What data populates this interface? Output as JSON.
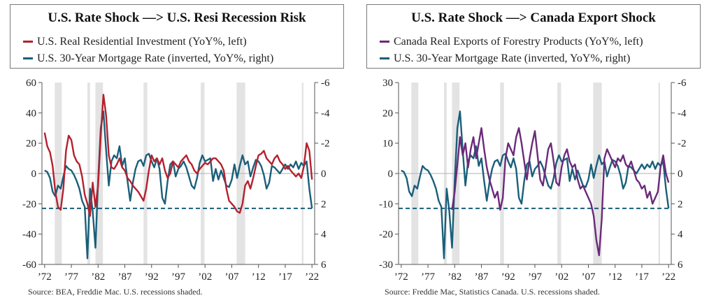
{
  "colors": {
    "us_mortgage": "#1a5f7a",
    "us_resi": "#b5202e",
    "canada_forestry": "#6b2a7a",
    "recession": "#e3e3e3",
    "dashed": "#1a5f7a"
  },
  "panels": [
    {
      "legend": {
        "title": "U.S. Rate Shock —> U.S. Resi Recession Risk",
        "series1": "U.S. Real Residential Investment (YoY%, left)",
        "series2": "U.S. 30-Year Mortgage Rate (inverted, YoY%, right)"
      },
      "source": "Source:  BEA, Freddie Mac. U.S. recessions shaded."
    },
    {
      "legend": {
        "title": "U.S. Rate Shock —> Canada Export Shock",
        "series1": "Canada Real Exports of Forestry Products (YoY%, left)",
        "series2": "U.S. 30-Year Mortgage Rate (inverted, YoY%, right)"
      },
      "source": "Source: Freddie Mac, Statistics Canada. U.S. recessions shaded."
    }
  ],
  "chart_data": [
    {
      "type": "line",
      "title": "U.S. Rate Shock —> U.S. Resi Recession Risk",
      "x_range": [
        1971.5,
        2022.5
      ],
      "x_ticks": [
        1972,
        1977,
        1982,
        1987,
        1992,
        1997,
        2002,
        2007,
        2012,
        2017,
        2022
      ],
      "x_tick_labels": [
        "’72",
        "’77",
        "’82",
        "’87",
        "’92",
        "’97",
        "’02",
        "’07",
        "’12",
        "’17",
        "’22"
      ],
      "y_left": {
        "range": [
          -60,
          60
        ],
        "ticks": [
          60,
          40,
          20,
          0,
          -20,
          -40,
          -60
        ],
        "tick_labels": [
          "60",
          "40",
          "20",
          "0",
          "-20",
          "-40",
          "-60"
        ]
      },
      "y_right": {
        "range": [
          -6,
          6
        ],
        "inverted": true,
        "ticks": [
          -6,
          -4,
          -2,
          0,
          2,
          4,
          6
        ],
        "tick_labels": [
          "-6",
          "-4",
          "-2",
          "0",
          "2",
          "4",
          "6"
        ]
      },
      "recessions": [
        [
          1973.9,
          1975.2
        ],
        [
          1980.0,
          1980.5
        ],
        [
          1981.5,
          1982.9
        ],
        [
          1990.5,
          1991.2
        ],
        [
          2001.2,
          2001.9
        ],
        [
          2007.9,
          2009.5
        ],
        [
          2020.1,
          2020.4
        ]
      ],
      "dashed_level": {
        "axis": "right",
        "value": 2.3
      },
      "series": [
        {
          "name": "U.S. Real Residential Investment (YoY%, left)",
          "axis": "left",
          "x": [
            1972.0,
            1972.5,
            1973.0,
            1973.5,
            1974.0,
            1974.5,
            1975.0,
            1975.5,
            1976.0,
            1976.5,
            1977.0,
            1977.5,
            1978.0,
            1978.5,
            1979.0,
            1979.5,
            1980.0,
            1980.5,
            1981.0,
            1981.5,
            1982.0,
            1982.5,
            1983.0,
            1983.5,
            1984.0,
            1984.5,
            1985.0,
            1985.5,
            1986.0,
            1986.5,
            1987.0,
            1987.5,
            1988.0,
            1988.5,
            1989.0,
            1989.5,
            1990.0,
            1990.5,
            1991.0,
            1991.5,
            1992.0,
            1992.5,
            1993.0,
            1993.5,
            1994.0,
            1994.5,
            1995.0,
            1995.5,
            1996.0,
            1996.5,
            1997.0,
            1997.5,
            1998.0,
            1998.5,
            1999.0,
            1999.5,
            2000.0,
            2000.5,
            2001.0,
            2001.5,
            2002.0,
            2002.5,
            2003.0,
            2003.5,
            2004.0,
            2004.5,
            2005.0,
            2005.5,
            2006.0,
            2006.5,
            2007.0,
            2007.5,
            2008.0,
            2008.5,
            2009.0,
            2009.5,
            2010.0,
            2010.5,
            2011.0,
            2011.5,
            2012.0,
            2012.5,
            2013.0,
            2013.5,
            2014.0,
            2014.5,
            2015.0,
            2015.5,
            2016.0,
            2016.5,
            2017.0,
            2017.5,
            2018.0,
            2018.5,
            2019.0,
            2019.5,
            2020.0,
            2020.5,
            2021.0,
            2021.5,
            2022.0
          ],
          "y": [
            27,
            18,
            14,
            5,
            -12,
            -22,
            -24,
            -10,
            15,
            25,
            22,
            12,
            8,
            6,
            -2,
            -14,
            -20,
            -28,
            -6,
            -22,
            -8,
            25,
            52,
            38,
            12,
            4,
            3,
            6,
            10,
            4,
            2,
            -3,
            -5,
            -8,
            -10,
            -12,
            -15,
            -18,
            -10,
            2,
            12,
            8,
            10,
            6,
            10,
            2,
            -3,
            0,
            8,
            6,
            4,
            8,
            10,
            12,
            8,
            6,
            2,
            0,
            3,
            5,
            7,
            6,
            8,
            10,
            10,
            8,
            6,
            2,
            -10,
            -18,
            -20,
            -22,
            -25,
            -26,
            -20,
            -8,
            -5,
            -10,
            -3,
            5,
            12,
            13,
            15,
            10,
            8,
            6,
            10,
            12,
            8,
            6,
            3,
            5,
            2,
            0,
            -2,
            0,
            -3,
            5,
            20,
            15,
            -4
          ]
        },
        {
          "name": "U.S. 30-Year Mortgage Rate (inverted, YoY%, right)",
          "axis": "right",
          "x": [
            1972.0,
            1972.5,
            1973.0,
            1973.5,
            1974.0,
            1974.5,
            1975.0,
            1975.5,
            1976.0,
            1976.5,
            1977.0,
            1977.5,
            1978.0,
            1978.5,
            1979.0,
            1979.5,
            1980.0,
            1980.5,
            1981.0,
            1981.5,
            1982.0,
            1982.5,
            1983.0,
            1983.5,
            1984.0,
            1984.5,
            1985.0,
            1985.5,
            1986.0,
            1986.5,
            1987.0,
            1987.5,
            1988.0,
            1988.5,
            1989.0,
            1989.5,
            1990.0,
            1990.5,
            1991.0,
            1991.5,
            1992.0,
            1992.5,
            1993.0,
            1993.5,
            1994.0,
            1994.5,
            1995.0,
            1995.5,
            1996.0,
            1996.5,
            1997.0,
            1997.5,
            1998.0,
            1998.5,
            1999.0,
            1999.5,
            2000.0,
            2000.5,
            2001.0,
            2001.5,
            2002.0,
            2002.5,
            2003.0,
            2003.5,
            2004.0,
            2004.5,
            2005.0,
            2005.5,
            2006.0,
            2006.5,
            2007.0,
            2007.5,
            2008.0,
            2008.5,
            2009.0,
            2009.5,
            2010.0,
            2010.5,
            2011.0,
            2011.5,
            2012.0,
            2012.5,
            2013.0,
            2013.5,
            2014.0,
            2014.5,
            2015.0,
            2015.5,
            2016.0,
            2016.5,
            2017.0,
            2017.5,
            2018.0,
            2018.5,
            2019.0,
            2019.5,
            2020.0,
            2020.5,
            2021.0,
            2021.5,
            2022.0
          ],
          "y": [
            -0.2,
            -0.1,
            0.3,
            1.2,
            1.5,
            0.8,
            1.0,
            0.2,
            -0.5,
            -0.3,
            -0.2,
            0.1,
            0.5,
            1.0,
            1.8,
            2.2,
            5.6,
            1.0,
            2.5,
            4.9,
            0.5,
            -3.0,
            -4.1,
            -1.5,
            0.8,
            -0.8,
            -1.2,
            -1.0,
            -1.8,
            -0.5,
            -1.0,
            0.5,
            1.8,
            0.6,
            -0.3,
            -0.8,
            -0.9,
            -0.5,
            -1.2,
            -1.3,
            -0.8,
            -0.4,
            -1.0,
            -0.3,
            1.6,
            2.0,
            0.5,
            -0.6,
            -0.8,
            0.2,
            -0.3,
            -0.5,
            -0.8,
            -0.4,
            0.2,
            0.8,
            1.0,
            0.3,
            -0.7,
            -1.2,
            -0.8,
            -0.9,
            -1.0,
            0.5,
            -0.3,
            0.4,
            -0.2,
            0.3,
            0.8,
            0.9,
            0.4,
            -0.6,
            0.3,
            -0.5,
            -1.2,
            -0.6,
            -0.8,
            0.2,
            -0.4,
            -0.9,
            -0.8,
            -0.5,
            0.1,
            1.0,
            0.6,
            -0.5,
            -0.4,
            -0.2,
            0.0,
            -0.3,
            -0.6,
            -0.3,
            -0.6,
            -0.4,
            -0.8,
            -0.3,
            -0.7,
            -0.5,
            -0.8,
            1.0,
            2.3
          ]
        }
      ]
    },
    {
      "type": "line",
      "title": "U.S. Rate Shock —> Canada Export Shock",
      "x_range": [
        1971.5,
        2022.5
      ],
      "x_ticks": [
        1972,
        1977,
        1982,
        1987,
        1992,
        1997,
        2002,
        2007,
        2012,
        2017,
        2022
      ],
      "x_tick_labels": [
        "’72",
        "’77",
        "’82",
        "’87",
        "’92",
        "’97",
        "’02",
        "’07",
        "’12",
        "’17",
        "’22"
      ],
      "y_left": {
        "range": [
          -30,
          30
        ],
        "ticks": [
          30,
          20,
          10,
          0,
          -10,
          -20,
          -30
        ],
        "tick_labels": [
          "30",
          "20",
          "10",
          "0",
          "-10",
          "-20",
          "-30"
        ]
      },
      "y_right": {
        "range": [
          -6,
          6
        ],
        "inverted": true,
        "ticks": [
          -6,
          -4,
          -2,
          0,
          2,
          4,
          6
        ],
        "tick_labels": [
          "-6",
          "-4",
          "-2",
          "0",
          "2",
          "4",
          "6"
        ]
      },
      "recessions": [
        [
          1973.9,
          1975.2
        ],
        [
          1980.0,
          1980.5
        ],
        [
          1981.5,
          1982.9
        ],
        [
          1990.5,
          1991.2
        ],
        [
          2001.2,
          2001.9
        ],
        [
          2007.9,
          2009.5
        ],
        [
          2020.1,
          2020.4
        ]
      ],
      "dashed_level": {
        "axis": "right",
        "value": 2.3
      },
      "series": [
        {
          "name": "Canada Real Exports of Forestry Products (YoY%, left)",
          "axis": "left",
          "x": [
            1981.5,
            1982.0,
            1982.5,
            1983.0,
            1983.5,
            1984.0,
            1984.5,
            1985.0,
            1985.5,
            1986.0,
            1986.5,
            1987.0,
            1987.5,
            1988.0,
            1988.5,
            1989.0,
            1989.5,
            1990.0,
            1990.5,
            1991.0,
            1991.5,
            1992.0,
            1992.5,
            1993.0,
            1993.5,
            1994.0,
            1994.5,
            1995.0,
            1995.5,
            1996.0,
            1996.5,
            1997.0,
            1997.5,
            1998.0,
            1998.5,
            1999.0,
            1999.5,
            2000.0,
            2000.5,
            2001.0,
            2001.5,
            2002.0,
            2002.5,
            2003.0,
            2003.5,
            2004.0,
            2004.5,
            2005.0,
            2005.5,
            2006.0,
            2006.5,
            2007.0,
            2007.5,
            2008.0,
            2008.5,
            2009.0,
            2009.5,
            2010.0,
            2010.5,
            2011.0,
            2011.5,
            2012.0,
            2012.5,
            2013.0,
            2013.5,
            2014.0,
            2014.5,
            2015.0,
            2015.5,
            2016.0,
            2016.5,
            2017.0,
            2017.5,
            2018.0,
            2018.5,
            2019.0,
            2019.5,
            2020.0,
            2020.5,
            2021.0,
            2021.5,
            2022.0
          ],
          "y": [
            -12,
            -6,
            3,
            12,
            6,
            10,
            2,
            8,
            12,
            5,
            10,
            15,
            8,
            2,
            -2,
            -5,
            -8,
            -6,
            -12,
            -8,
            5,
            10,
            8,
            6,
            12,
            15,
            10,
            4,
            -2,
            5,
            10,
            14,
            6,
            -2,
            -4,
            2,
            8,
            10,
            4,
            -3,
            -4,
            2,
            6,
            8,
            4,
            2,
            3,
            -2,
            -5,
            -4,
            -6,
            -8,
            -10,
            -14,
            -22,
            -27,
            -15,
            5,
            8,
            6,
            4,
            2,
            5,
            4,
            6,
            3,
            2,
            4,
            1,
            -2,
            -3,
            -5,
            -4,
            -8,
            -6,
            -10,
            -8,
            -6,
            2,
            6,
            0,
            -3
          ]
        },
        {
          "name": "U.S. 30-Year Mortgage Rate (inverted, YoY%, right)",
          "axis": "right",
          "x": [
            1972.0,
            1972.5,
            1973.0,
            1973.5,
            1974.0,
            1974.5,
            1975.0,
            1975.5,
            1976.0,
            1976.5,
            1977.0,
            1977.5,
            1978.0,
            1978.5,
            1979.0,
            1979.5,
            1980.0,
            1980.5,
            1981.0,
            1981.5,
            1982.0,
            1982.5,
            1983.0,
            1983.5,
            1984.0,
            1984.5,
            1985.0,
            1985.5,
            1986.0,
            1986.5,
            1987.0,
            1987.5,
            1988.0,
            1988.5,
            1989.0,
            1989.5,
            1990.0,
            1990.5,
            1991.0,
            1991.5,
            1992.0,
            1992.5,
            1993.0,
            1993.5,
            1994.0,
            1994.5,
            1995.0,
            1995.5,
            1996.0,
            1996.5,
            1997.0,
            1997.5,
            1998.0,
            1998.5,
            1999.0,
            1999.5,
            2000.0,
            2000.5,
            2001.0,
            2001.5,
            2002.0,
            2002.5,
            2003.0,
            2003.5,
            2004.0,
            2004.5,
            2005.0,
            2005.5,
            2006.0,
            2006.5,
            2007.0,
            2007.5,
            2008.0,
            2008.5,
            2009.0,
            2009.5,
            2010.0,
            2010.5,
            2011.0,
            2011.5,
            2012.0,
            2012.5,
            2013.0,
            2013.5,
            2014.0,
            2014.5,
            2015.0,
            2015.5,
            2016.0,
            2016.5,
            2017.0,
            2017.5,
            2018.0,
            2018.5,
            2019.0,
            2019.5,
            2020.0,
            2020.5,
            2021.0,
            2021.5,
            2022.0
          ],
          "y": [
            -0.2,
            -0.1,
            0.3,
            1.2,
            1.5,
            0.8,
            1.0,
            0.2,
            -0.5,
            -0.3,
            -0.2,
            0.1,
            0.5,
            1.0,
            1.8,
            2.2,
            5.6,
            1.0,
            2.5,
            4.9,
            0.5,
            -3.0,
            -4.1,
            -1.5,
            0.8,
            -0.8,
            -1.2,
            -1.0,
            -1.8,
            -0.5,
            -1.0,
            0.5,
            1.8,
            0.6,
            -0.3,
            -0.8,
            -0.9,
            -0.5,
            -1.2,
            -1.3,
            -0.8,
            -0.4,
            -1.0,
            -0.3,
            1.6,
            2.0,
            0.5,
            -0.6,
            -0.8,
            0.2,
            -0.3,
            -0.5,
            -0.8,
            -0.4,
            0.2,
            0.8,
            1.0,
            0.3,
            -0.7,
            -1.2,
            -0.8,
            -0.9,
            -1.0,
            0.5,
            -0.3,
            0.4,
            -0.2,
            0.3,
            0.8,
            0.9,
            0.4,
            -0.6,
            0.3,
            -0.5,
            -1.2,
            -0.6,
            -0.8,
            0.2,
            -0.4,
            -0.9,
            -0.8,
            -0.5,
            0.1,
            1.0,
            0.6,
            -0.5,
            -0.4,
            -0.2,
            0.0,
            -0.3,
            -0.6,
            -0.3,
            -0.6,
            -0.4,
            -0.8,
            -0.3,
            -0.7,
            -0.5,
            -0.8,
            1.0,
            2.3
          ]
        }
      ]
    }
  ]
}
